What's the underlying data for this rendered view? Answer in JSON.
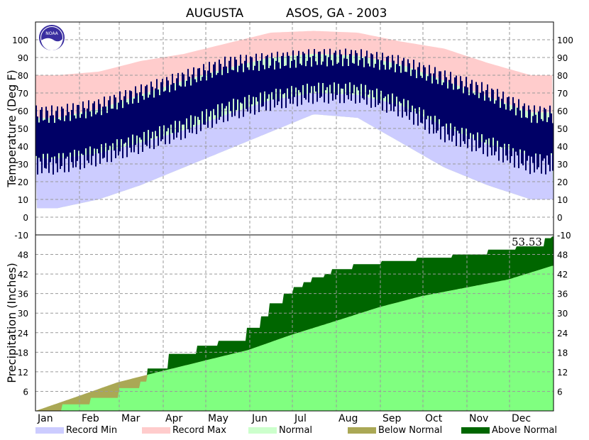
{
  "chart_data": [
    {
      "type": "bar",
      "panel": "temperature",
      "title_left": "AUGUSTA",
      "title_right": "ASOS, GA - 2003",
      "ylabel": "Temperature (Deg F)",
      "ylim": [
        -10,
        110
      ],
      "yticks": [
        -10,
        0,
        10,
        20,
        30,
        40,
        50,
        60,
        70,
        80,
        90,
        100
      ],
      "x_month_labels": [
        "Jan",
        "Feb",
        "Mar",
        "Apr",
        "May",
        "Jun",
        "Jul",
        "Aug",
        "Sep",
        "Oct",
        "Nov",
        "Dec"
      ],
      "grid": true,
      "normals_by_month": {
        "months": [
          "Jan",
          "Feb",
          "Mar",
          "Apr",
          "May",
          "Jun",
          "Jul",
          "Aug",
          "Sep",
          "Oct",
          "Nov",
          "Dec"
        ],
        "record_max": [
          80,
          82,
          88,
          92,
          98,
          104,
          105,
          104,
          99,
          95,
          87,
          80
        ],
        "normal_high": [
          56,
          61,
          69,
          77,
          84,
          90,
          92,
          91,
          86,
          77,
          68,
          59
        ],
        "normal_low": [
          33,
          36,
          42,
          49,
          58,
          66,
          70,
          69,
          63,
          51,
          41,
          35
        ],
        "record_min": [
          5,
          10,
          18,
          28,
          38,
          48,
          58,
          56,
          42,
          28,
          18,
          10
        ]
      },
      "observed_range_by_month": {
        "months": [
          "Jan",
          "Feb",
          "Mar",
          "Apr",
          "May",
          "Jun",
          "Jul",
          "Aug",
          "Sep",
          "Oct",
          "Nov",
          "Dec"
        ],
        "high": [
          58,
          62,
          70,
          78,
          86,
          88,
          90,
          90,
          86,
          78,
          70,
          58
        ],
        "low": [
          30,
          35,
          42,
          50,
          60,
          66,
          70,
          70,
          62,
          48,
          40,
          30
        ]
      },
      "colors": {
        "record_min": "#ccccff",
        "record_max": "#ffcccc",
        "normal": "#ccffcc",
        "observed": "#000066"
      }
    },
    {
      "type": "area",
      "panel": "precipitation",
      "ylabel": "Precipitation (Inches)",
      "yticks": [
        6,
        12,
        18,
        24,
        30,
        36,
        42,
        48
      ],
      "ylim": [
        0,
        54
      ],
      "total_label": "53.53",
      "grid": true,
      "cumulative_observed": {
        "day": [
          1,
          20,
          40,
          60,
          75,
          80,
          95,
          115,
          130,
          150,
          160,
          166,
          176,
          183,
          190,
          196,
          205,
          210,
          225,
          245,
          270,
          295,
          320,
          340,
          360,
          365
        ],
        "inches": [
          0,
          2,
          4,
          7,
          9,
          13,
          17.5,
          20,
          21.5,
          25.5,
          29,
          33,
          36,
          38,
          39.5,
          41,
          42,
          43.5,
          45,
          46,
          47,
          48,
          49.5,
          50.5,
          53,
          53.53
        ]
      },
      "cumulative_normal": {
        "day": [
          1,
          31,
          59,
          90,
          120,
          151,
          181,
          212,
          243,
          273,
          304,
          334,
          365
        ],
        "inches": [
          0,
          4.5,
          8.8,
          12.2,
          15.4,
          18.7,
          23.3,
          27.5,
          31.8,
          35.2,
          37.8,
          40.3,
          44.5
        ]
      },
      "colors": {
        "normal": "#80ff80",
        "above_normal": "#006600",
        "below_normal": "#aaa855"
      }
    }
  ],
  "legend": [
    {
      "label": "Record Min",
      "color": "#ccccff"
    },
    {
      "label": "Record Max",
      "color": "#ffcccc"
    },
    {
      "label": "Normal",
      "color": "#ccffcc"
    },
    {
      "label": "Below Normal",
      "color": "#aaa855"
    },
    {
      "label": "Above Normal",
      "color": "#006600"
    }
  ],
  "logo": {
    "text": "NOAA",
    "icon": "noaa-logo-icon"
  }
}
